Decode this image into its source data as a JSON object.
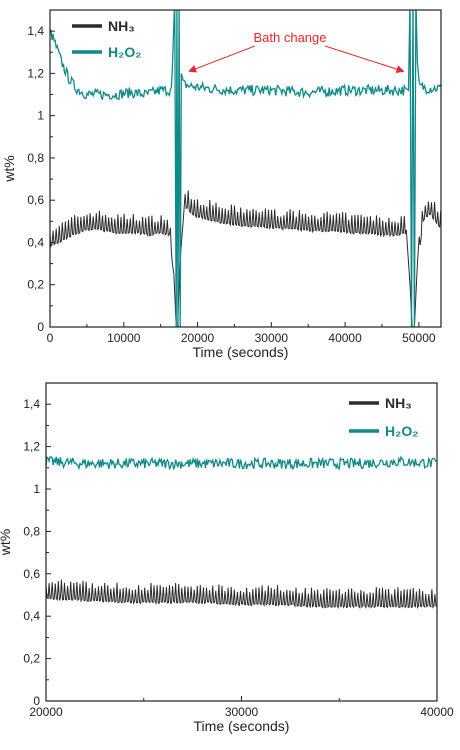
{
  "chart_data": [
    {
      "type": "line",
      "xlabel": "Time (seconds)",
      "ylabel": "wt%",
      "xlim": [
        0,
        53000
      ],
      "ylim": [
        0,
        1.5
      ],
      "xticks": [
        0,
        10000,
        20000,
        30000,
        40000,
        50000
      ],
      "xtick_labels": [
        "0",
        "10000",
        "20000",
        "30000",
        "40000",
        "50000"
      ],
      "yticks": [
        0,
        0.2,
        0.4,
        0.6,
        0.8,
        1.0,
        1.2,
        1.4
      ],
      "ytick_labels": [
        "0",
        "0,2",
        "0,4",
        "0,6",
        "0,8",
        "1",
        "1,2",
        "1,4"
      ],
      "legend_position": "top-left",
      "annotation": {
        "text": "Bath change",
        "color": "#e8262b",
        "arrow_targets_x": [
          17500,
          49000
        ]
      },
      "series": [
        {
          "name": "NH₃",
          "color": "#2b2b2b",
          "x": [
            0,
            1500,
            3000,
            4500,
            6000,
            7500,
            9000,
            10500,
            12000,
            13500,
            15000,
            16200,
            16800,
            17100,
            17300,
            17600,
            18200,
            19500,
            21000,
            23000,
            25000,
            27000,
            29000,
            31000,
            33000,
            35000,
            37000,
            39000,
            41000,
            43000,
            45000,
            47000,
            48300,
            48800,
            49100,
            49400,
            49800,
            50600,
            51500,
            53000
          ],
          "y": [
            0.4,
            0.42,
            0.45,
            0.47,
            0.48,
            0.47,
            0.46,
            0.46,
            0.46,
            0.45,
            0.46,
            0.45,
            0.25,
            0.0,
            0.0,
            0.3,
            0.59,
            0.54,
            0.53,
            0.51,
            0.5,
            0.49,
            0.49,
            0.48,
            0.48,
            0.47,
            0.47,
            0.47,
            0.46,
            0.46,
            0.45,
            0.45,
            0.46,
            0.2,
            0.0,
            0.0,
            0.3,
            0.52,
            0.55,
            0.48
          ]
        },
        {
          "name": "H₂O₂",
          "color": "#0e8a8a",
          "x": [
            0,
            500,
            1500,
            2500,
            3500,
            5000,
            7000,
            9000,
            11000,
            13000,
            15000,
            16500,
            16900,
            17100,
            17200,
            17350,
            17500,
            17650,
            17800,
            18000,
            19000,
            21000,
            25000,
            30000,
            35000,
            40000,
            45000,
            47500,
            48600,
            48800,
            49000,
            49200,
            49400,
            49600,
            49800,
            50000,
            51000,
            53000
          ],
          "y": [
            1.4,
            1.36,
            1.26,
            1.18,
            1.13,
            1.1,
            1.1,
            1.1,
            1.11,
            1.1,
            1.12,
            1.12,
            1.55,
            0.0,
            1.55,
            0.0,
            1.55,
            0.0,
            1.2,
            1.15,
            1.14,
            1.13,
            1.12,
            1.12,
            1.11,
            1.12,
            1.12,
            1.12,
            1.12,
            1.55,
            0.0,
            1.55,
            0.0,
            1.55,
            1.25,
            1.14,
            1.13,
            1.13
          ]
        }
      ]
    },
    {
      "type": "line",
      "xlabel": "Time (seconds)",
      "ylabel": "wt%",
      "xlim": [
        20000,
        40000
      ],
      "ylim": [
        0,
        1.5
      ],
      "xticks": [
        20000,
        30000,
        40000
      ],
      "xtick_labels": [
        "20000",
        "30000",
        "40000"
      ],
      "yticks": [
        0,
        0.2,
        0.4,
        0.6,
        0.8,
        1.0,
        1.2,
        1.4
      ],
      "ytick_labels": [
        "0",
        "0,2",
        "0,4",
        "0,6",
        "0,8",
        "1",
        "1,2",
        "1,4"
      ],
      "legend_position": "top-right",
      "series": [
        {
          "name": "NH₃",
          "color": "#2b2b2b",
          "x": [
            20000,
            22000,
            24000,
            26000,
            28000,
            30000,
            32000,
            34000,
            36000,
            38000,
            40000
          ],
          "y": [
            0.5,
            0.49,
            0.48,
            0.48,
            0.48,
            0.47,
            0.47,
            0.46,
            0.46,
            0.46,
            0.46
          ]
        },
        {
          "name": "H₂O₂",
          "color": "#0e8a8a",
          "x": [
            20000,
            22000,
            24000,
            26000,
            28000,
            30000,
            32000,
            34000,
            36000,
            38000,
            40000
          ],
          "y": [
            1.13,
            1.12,
            1.12,
            1.12,
            1.12,
            1.12,
            1.12,
            1.12,
            1.12,
            1.13,
            1.12
          ]
        }
      ]
    }
  ]
}
